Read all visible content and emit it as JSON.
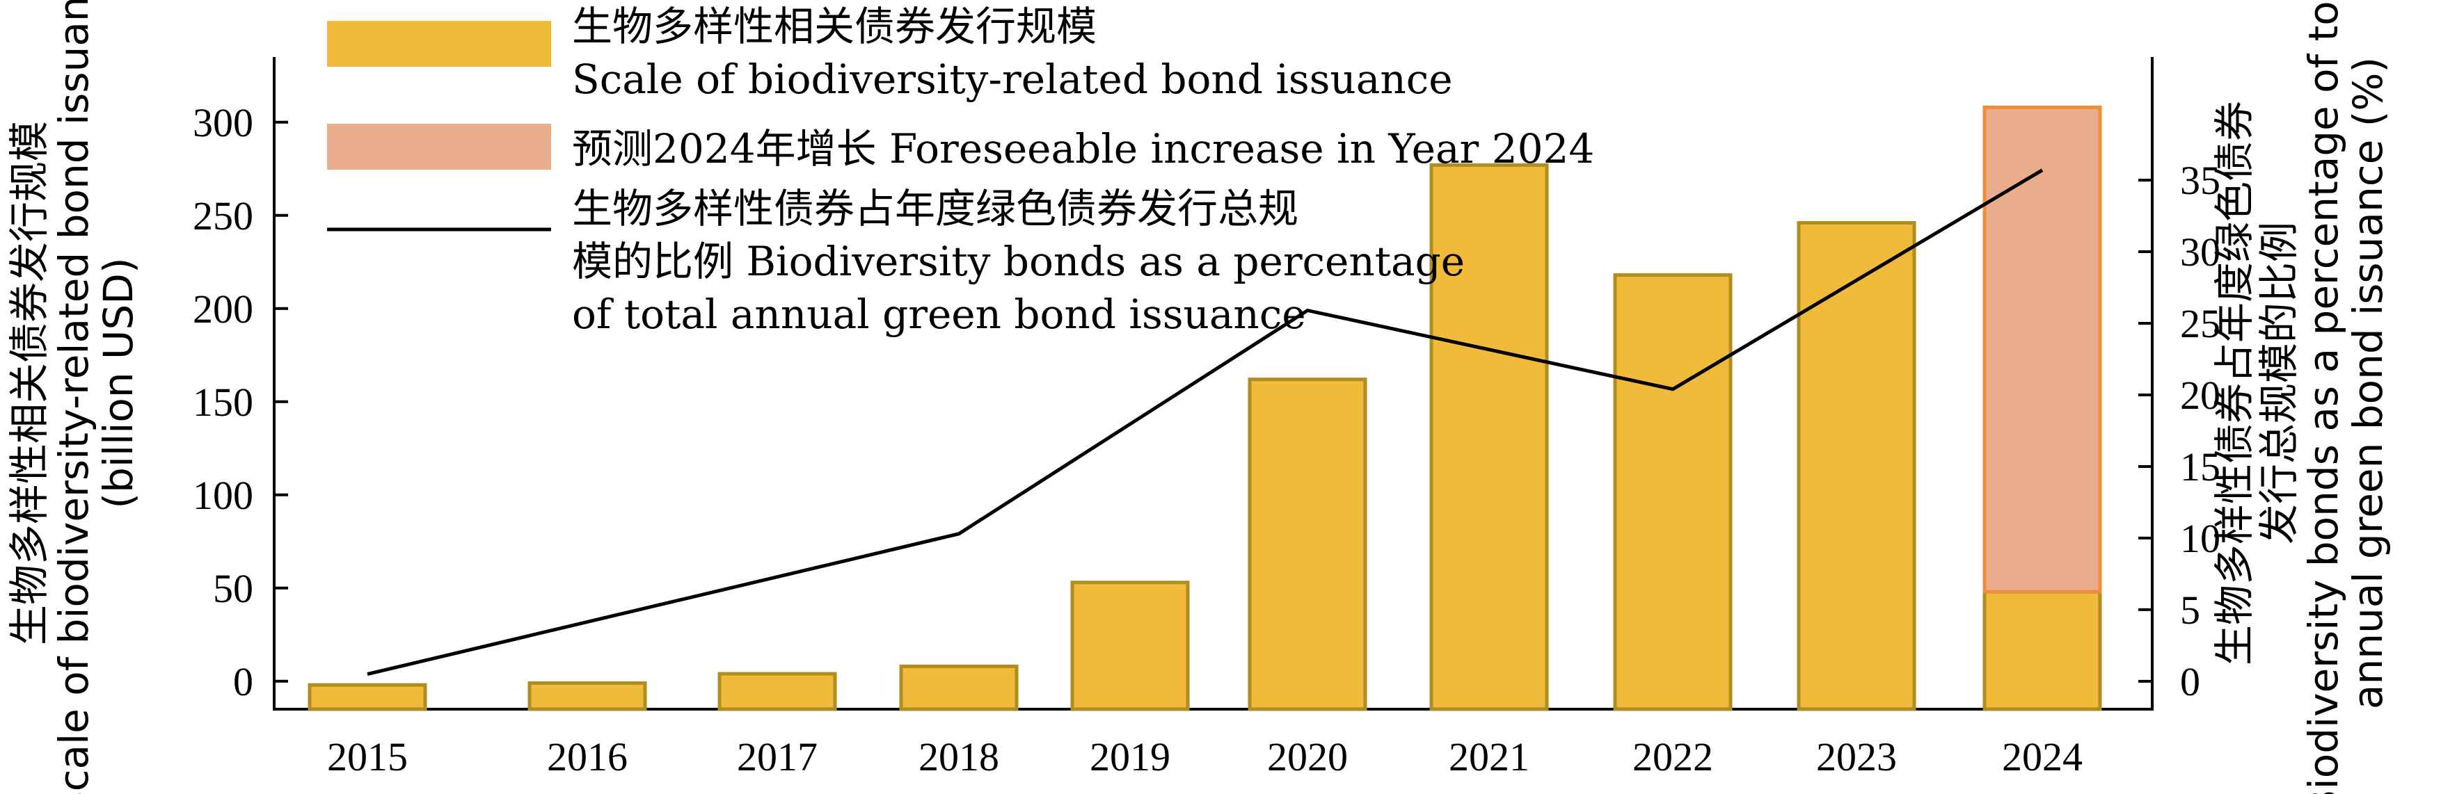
{
  "chart_data": {
    "type": "bar",
    "categories": [
      "2015",
      "2016",
      "2017",
      "2018",
      "2019",
      "2020",
      "2021",
      "2022",
      "2023",
      "2024"
    ],
    "series": [
      {
        "name": "生物多样性相关债券发行规模 Scale of biodiversity-related bond issuance",
        "type": "bar",
        "axis": "left",
        "values": [
          -2,
          -1,
          4,
          8,
          53,
          162,
          277,
          218,
          246,
          48
        ],
        "color": "#F0BB3A",
        "edge_color": "#B08D1E"
      },
      {
        "name": "预测2024年增长 Foreseeable increase in Year 2024",
        "type": "bar-stacked",
        "axis": "left",
        "values": [
          null,
          null,
          null,
          null,
          null,
          null,
          null,
          null,
          null,
          260
        ],
        "color": "#EAAD8C",
        "edge_color": "#EE8C3B"
      },
      {
        "name": "生物多样性债券占年度绿色债券发行总规模的比例 Biodiversity bonds as a percentage of total annual green bond issuance",
        "type": "line",
        "axis": "right",
        "values": [
          0.5,
          null,
          null,
          10.3,
          null,
          25.9,
          null,
          20.4,
          null,
          35.7
        ],
        "color": "#000000"
      }
    ],
    "left_axis": {
      "label_zh": "生物多样性相关债券发行规模",
      "label_en": "Scale of biodiversity-related bond issuance",
      "label_unit": "(billion USD)",
      "ticks": [
        0,
        50,
        100,
        150,
        200,
        250,
        300
      ],
      "range": [
        -15,
        335
      ]
    },
    "right_axis": {
      "label_zh_1": "生物多样性债券占年度绿色债券",
      "label_zh_2": "发行总规模的比例",
      "label_en_1": "Biodiversity bonds as a percentage of total",
      "label_en_2": "annual green bond issuance (%)",
      "ticks": [
        0,
        5,
        10,
        15,
        20,
        25,
        30,
        35
      ],
      "range": [
        -1.95,
        43.6
      ]
    },
    "legend": {
      "position": "top-left",
      "entries": [
        {
          "line1": "生物多样性相关债券发行规模",
          "line2": "Scale of biodiversity-related bond issuance"
        },
        {
          "line1": "预测2024年增长 Foreseeable increase in Year 2024"
        },
        {
          "line1": "生物多样性债券占年度绿色债券发行总规",
          "line2": "模的比例 Biodiversity bonds as a percentage",
          "line3": "of total annual green bond issuance"
        }
      ]
    }
  }
}
